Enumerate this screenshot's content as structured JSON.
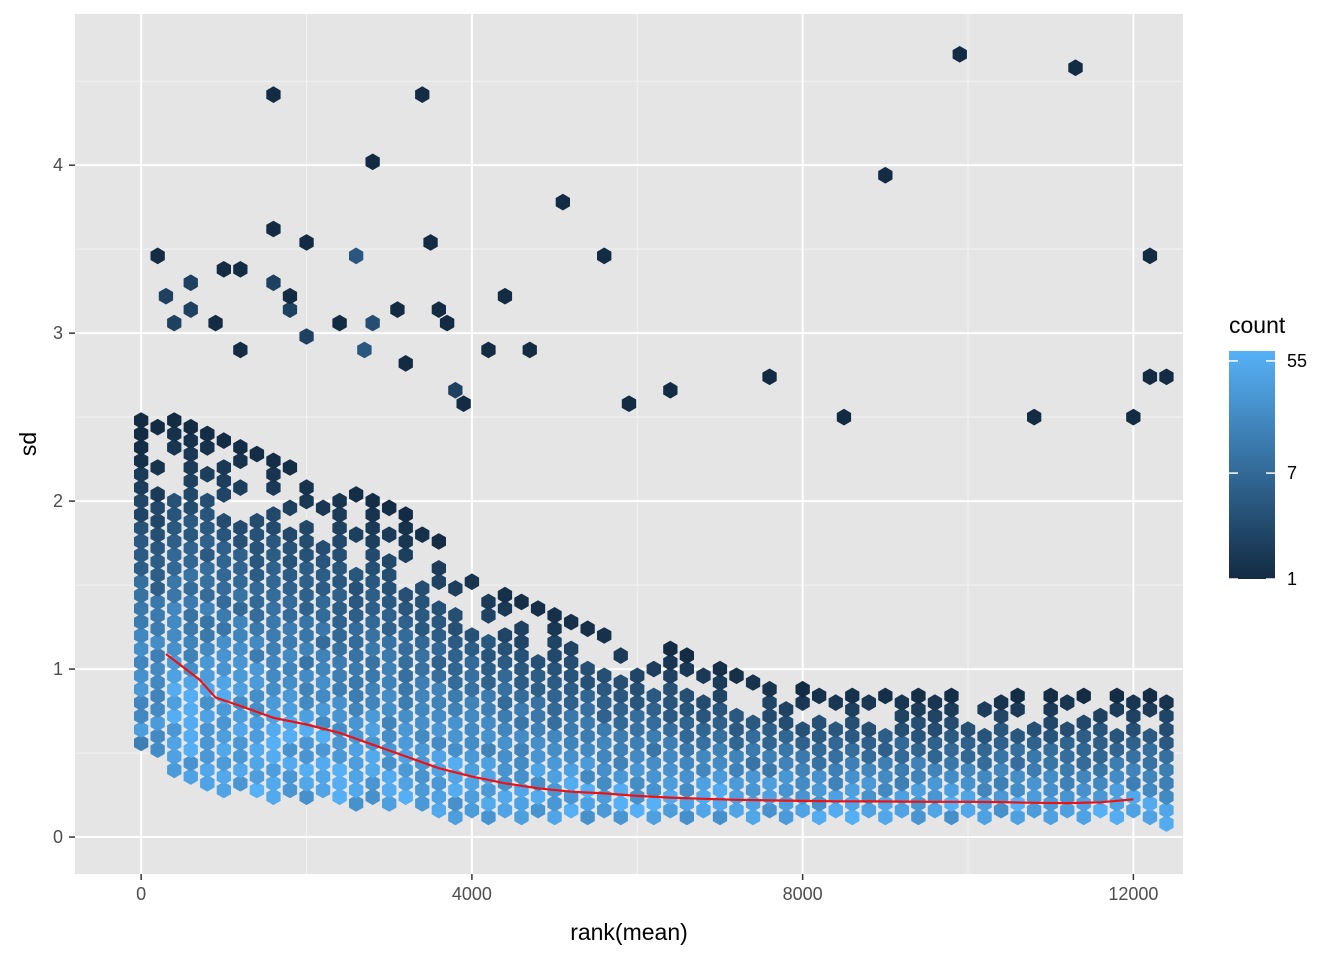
{
  "chart_data": {
    "type": "hexbin",
    "xlabel": "rank(mean)",
    "ylabel": "sd",
    "xlim": [
      -800,
      12600
    ],
    "ylim": [
      -0.22,
      4.9
    ],
    "x_ticks": [
      0,
      4000,
      8000,
      12000
    ],
    "x_tick_labels": [
      "0",
      "4000",
      "8000",
      "12000"
    ],
    "y_ticks": [
      0,
      1,
      2,
      3,
      4
    ],
    "y_tick_labels": [
      "0",
      "1",
      "2",
      "3",
      "4"
    ],
    "grid": true,
    "panel_background": "#e5e5e5",
    "legend": {
      "title": "count",
      "position": "right",
      "scale": "log",
      "breaks": [
        1,
        7,
        55
      ],
      "labels": [
        "1",
        "7",
        "55"
      ],
      "range": [
        1,
        66
      ],
      "low_color": "#132b43",
      "high_color": "#56b1f7"
    },
    "hex_bins": [
      [
        300,
        3.22,
        2
      ],
      [
        600,
        3.3,
        2
      ],
      [
        200,
        3.46,
        1
      ],
      [
        1000,
        3.38,
        1
      ],
      [
        1200,
        3.38,
        1
      ],
      [
        1600,
        3.62,
        1
      ],
      [
        1600,
        4.42,
        1
      ],
      [
        2000,
        3.54,
        1
      ],
      [
        2600,
        3.46,
        4
      ],
      [
        2800,
        4.02,
        1
      ],
      [
        3400,
        4.42,
        1
      ],
      [
        3500,
        3.54,
        1
      ],
      [
        5100,
        3.78,
        1
      ],
      [
        5600,
        3.46,
        1
      ],
      [
        4400,
        3.22,
        1
      ],
      [
        4200,
        2.9,
        1
      ],
      [
        4700,
        2.9,
        1
      ],
      [
        9900,
        4.66,
        1
      ],
      [
        11300,
        4.58,
        1
      ],
      [
        9000,
        3.94,
        1
      ],
      [
        12200,
        3.46,
        1
      ],
      [
        12200,
        2.74,
        1
      ],
      [
        12400,
        2.74,
        1
      ],
      [
        12000,
        2.5,
        1
      ],
      [
        10800,
        2.5,
        1
      ],
      [
        7600,
        2.74,
        1
      ],
      [
        8500,
        2.5,
        1
      ],
      [
        6400,
        2.66,
        1
      ],
      [
        5900,
        2.58,
        1
      ],
      [
        400,
        3.06,
        2
      ],
      [
        600,
        3.14,
        2
      ],
      [
        900,
        3.06,
        1
      ],
      [
        1200,
        2.9,
        1
      ],
      [
        1800,
        3.14,
        2
      ],
      [
        2000,
        2.98,
        2
      ],
      [
        2400,
        3.06,
        1
      ],
      [
        2800,
        3.06,
        3
      ],
      [
        3100,
        3.14,
        1
      ],
      [
        3600,
        3.14,
        1
      ],
      [
        3700,
        3.06,
        1
      ],
      [
        3200,
        2.82,
        1
      ],
      [
        2700,
        2.9,
        4
      ],
      [
        3900,
        2.58,
        1
      ],
      [
        3800,
        2.66,
        2
      ],
      [
        1600,
        3.3,
        2
      ],
      [
        1800,
        3.22,
        1
      ]
    ],
    "hex_fill_model": {
      "grid_dx": 200,
      "grid_dy": 0.08,
      "max_count": 66,
      "sd_ceiling": [
        [
          0,
          2.55
        ],
        [
          1500,
          2.3
        ],
        [
          3000,
          2.0
        ],
        [
          4500,
          1.45
        ],
        [
          6000,
          1.18
        ],
        [
          8000,
          0.88
        ],
        [
          10000,
          0.85
        ],
        [
          12400,
          0.85
        ]
      ],
      "sd_floor": [
        [
          0,
          0.55
        ],
        [
          600,
          0.3
        ],
        [
          1200,
          0.25
        ],
        [
          3500,
          0.15
        ],
        [
          4000,
          0.1
        ],
        [
          12400,
          0.08
        ]
      ],
      "density_center": [
        [
          0,
          1.0
        ],
        [
          1000,
          0.78
        ],
        [
          2500,
          0.55
        ],
        [
          4000,
          0.38
        ],
        [
          5000,
          0.3
        ],
        [
          8000,
          0.22
        ],
        [
          12400,
          0.2
        ]
      ]
    },
    "series": [
      {
        "type": "line",
        "color": "#ff0000",
        "x": [
          300,
          700,
          900,
          1200,
          1600,
          2000,
          2400,
          2800,
          3200,
          3600,
          4000,
          4400,
          4800,
          5200,
          5600,
          6000,
          6400,
          6800,
          7200,
          7600,
          8000,
          8400,
          8800,
          9200,
          9600,
          10000,
          10400,
          10800,
          11200,
          11600,
          12000
        ],
        "y": [
          1.09,
          0.94,
          0.83,
          0.78,
          0.71,
          0.67,
          0.62,
          0.55,
          0.48,
          0.41,
          0.36,
          0.32,
          0.29,
          0.27,
          0.26,
          0.245,
          0.235,
          0.228,
          0.222,
          0.218,
          0.215,
          0.213,
          0.212,
          0.211,
          0.21,
          0.21,
          0.208,
          0.204,
          0.202,
          0.207,
          0.225
        ]
      }
    ]
  }
}
